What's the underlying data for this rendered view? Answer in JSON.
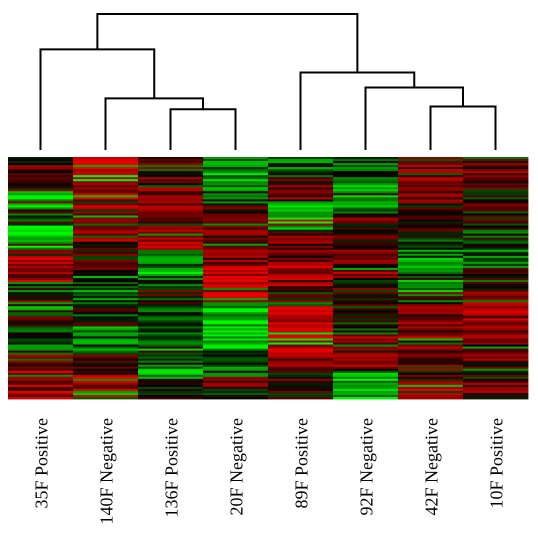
{
  "chart_data": {
    "type": "heatmap",
    "samples": [
      "35F Positive",
      "140F Negative",
      "136F Positive",
      "20F Negative",
      "89F Positive",
      "92F Negative",
      "42F Negative",
      "10F Positive"
    ],
    "dendrogram": {
      "leaf_order": [
        0,
        1,
        2,
        3,
        4,
        5,
        6,
        7
      ],
      "merges": [
        {
          "left": "L2",
          "right": "L3",
          "height": 0.3
        },
        {
          "left": "L1",
          "right": "N0",
          "height": 0.38
        },
        {
          "left": "L0",
          "right": "N1",
          "height": 0.74
        },
        {
          "left": "L6",
          "right": "L7",
          "height": 0.32
        },
        {
          "left": "L5",
          "right": "N3",
          "height": 0.46
        },
        {
          "left": "L4",
          "right": "N4",
          "height": 0.57
        },
        {
          "left": "N2",
          "right": "N5",
          "height": 1.0
        }
      ]
    },
    "color_scale": {
      "low": "#00ff00",
      "mid": "#000000",
      "high": "#ff0000"
    },
    "rows": 120,
    "column_profiles": [
      [
        [
          0.0,
          0.14,
          0.3
        ],
        [
          0.14,
          0.22,
          -0.8
        ],
        [
          0.22,
          0.28,
          -0.1
        ],
        [
          0.28,
          0.38,
          -0.85
        ],
        [
          0.38,
          0.52,
          0.55
        ],
        [
          0.52,
          0.58,
          -0.2
        ],
        [
          0.58,
          0.66,
          -0.45
        ],
        [
          0.66,
          0.72,
          0.0
        ],
        [
          0.72,
          0.8,
          -0.4
        ],
        [
          0.8,
          0.88,
          0.35
        ],
        [
          0.88,
          1.0,
          0.65
        ]
      ],
      [
        [
          0.0,
          0.12,
          0.95
        ],
        [
          0.12,
          0.2,
          0.55
        ],
        [
          0.2,
          0.35,
          0.5
        ],
        [
          0.35,
          0.48,
          0.15
        ],
        [
          0.48,
          0.6,
          -0.35
        ],
        [
          0.6,
          0.7,
          -0.1
        ],
        [
          0.7,
          0.82,
          -0.4
        ],
        [
          0.82,
          0.9,
          0.2
        ],
        [
          0.9,
          1.0,
          0.65
        ]
      ],
      [
        [
          0.0,
          0.12,
          0.2
        ],
        [
          0.12,
          0.24,
          0.5
        ],
        [
          0.24,
          0.38,
          0.6
        ],
        [
          0.38,
          0.5,
          -0.55
        ],
        [
          0.5,
          0.6,
          -0.3
        ],
        [
          0.6,
          0.72,
          -0.1
        ],
        [
          0.72,
          0.84,
          -0.45
        ],
        [
          0.84,
          0.92,
          -0.6
        ],
        [
          0.92,
          1.0,
          0.0
        ]
      ],
      [
        [
          0.0,
          0.1,
          -0.55
        ],
        [
          0.1,
          0.2,
          -0.4
        ],
        [
          0.2,
          0.36,
          0.3
        ],
        [
          0.36,
          0.46,
          0.5
        ],
        [
          0.46,
          0.58,
          0.8
        ],
        [
          0.58,
          0.68,
          -0.75
        ],
        [
          0.68,
          0.8,
          -0.8
        ],
        [
          0.8,
          0.9,
          -0.3
        ],
        [
          0.9,
          1.0,
          0.3
        ]
      ],
      [
        [
          0.0,
          0.08,
          -0.25
        ],
        [
          0.08,
          0.18,
          0.3
        ],
        [
          0.18,
          0.3,
          -0.85
        ],
        [
          0.3,
          0.44,
          0.35
        ],
        [
          0.44,
          0.56,
          0.55
        ],
        [
          0.56,
          0.62,
          -0.5
        ],
        [
          0.62,
          0.8,
          0.85
        ],
        [
          0.8,
          0.9,
          0.55
        ],
        [
          0.9,
          1.0,
          0.2
        ]
      ],
      [
        [
          0.0,
          0.1,
          -0.2
        ],
        [
          0.1,
          0.24,
          -0.55
        ],
        [
          0.24,
          0.4,
          0.3
        ],
        [
          0.4,
          0.5,
          0.45
        ],
        [
          0.5,
          0.62,
          0.2
        ],
        [
          0.62,
          0.74,
          -0.1
        ],
        [
          0.74,
          0.88,
          0.5
        ],
        [
          0.88,
          1.0,
          -0.6
        ]
      ],
      [
        [
          0.0,
          0.14,
          0.4
        ],
        [
          0.14,
          0.3,
          0.25
        ],
        [
          0.3,
          0.42,
          -0.3
        ],
        [
          0.42,
          0.56,
          -0.45
        ],
        [
          0.56,
          0.68,
          0.35
        ],
        [
          0.68,
          0.8,
          0.55
        ],
        [
          0.8,
          0.9,
          0.3
        ],
        [
          0.9,
          1.0,
          0.55
        ]
      ],
      [
        [
          0.0,
          0.12,
          0.3
        ],
        [
          0.12,
          0.3,
          0.1
        ],
        [
          0.3,
          0.46,
          -0.35
        ],
        [
          0.46,
          0.56,
          -0.1
        ],
        [
          0.56,
          0.72,
          0.5
        ],
        [
          0.72,
          0.84,
          0.4
        ],
        [
          0.84,
          1.0,
          0.35
        ]
      ]
    ]
  }
}
